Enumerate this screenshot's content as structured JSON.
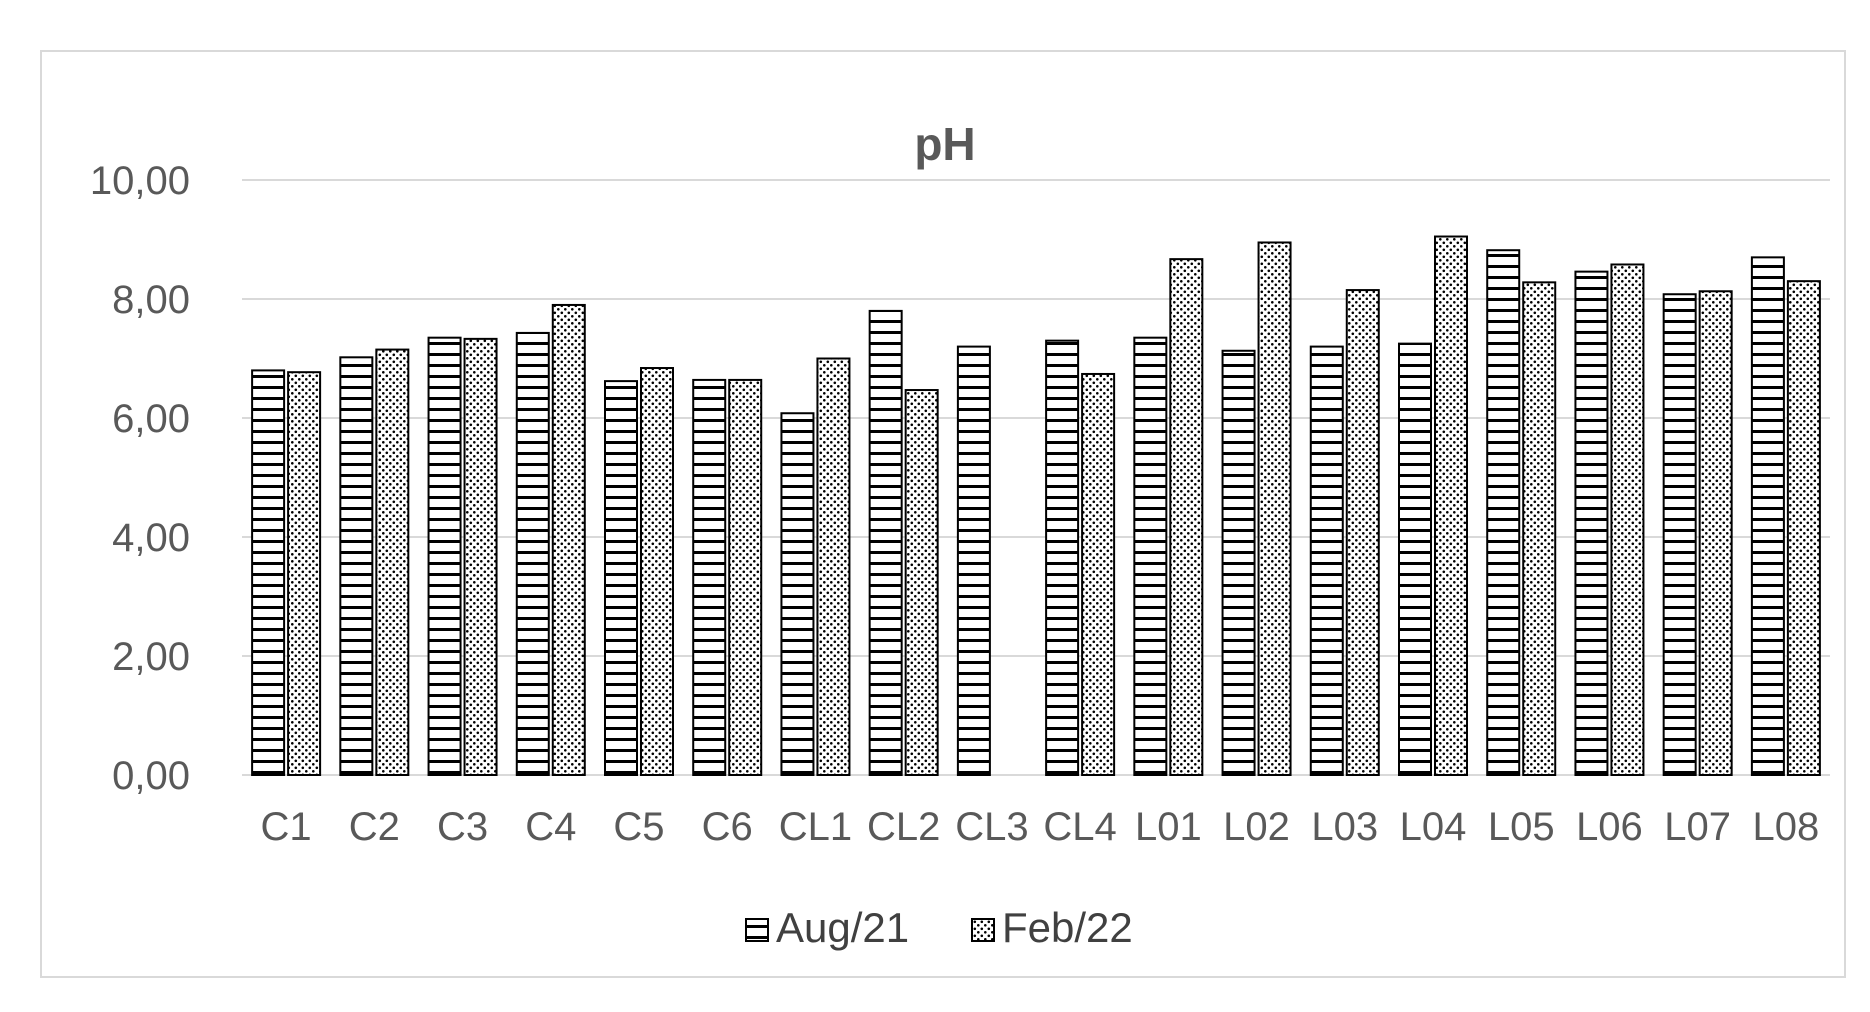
{
  "chart_data": {
    "type": "bar",
    "title": "pH",
    "xlabel": "",
    "ylabel": "",
    "ylim": [
      0,
      10
    ],
    "yticks": [
      "0,00",
      "2,00",
      "4,00",
      "6,00",
      "8,00",
      "10,00"
    ],
    "grid": true,
    "legend_position": "bottom",
    "categories": [
      "C1",
      "C2",
      "C3",
      "C4",
      "C5",
      "C6",
      "CL1",
      "CL2",
      "CL3",
      "CL4",
      "L01",
      "L02",
      "L03",
      "L04",
      "L05",
      "L06",
      "L07",
      "L08"
    ],
    "series": [
      {
        "name": "Aug/21",
        "pattern": "horizontal-lines",
        "values": [
          6.8,
          7.02,
          7.35,
          7.43,
          6.62,
          6.64,
          6.08,
          7.8,
          7.2,
          7.3,
          7.35,
          7.13,
          7.2,
          7.25,
          8.82,
          8.46,
          8.08,
          8.7
        ]
      },
      {
        "name": "Feb/22",
        "pattern": "dots",
        "values": [
          6.77,
          7.15,
          7.33,
          7.9,
          6.84,
          6.64,
          7.0,
          6.47,
          null,
          6.74,
          8.67,
          8.95,
          8.15,
          9.05,
          8.28,
          8.58,
          8.13,
          8.3
        ]
      }
    ],
    "colors": {
      "bar_fill": "#ffffff",
      "bar_stroke": "#000000",
      "gridline": "#d9d9d9",
      "text": "#595959"
    }
  }
}
